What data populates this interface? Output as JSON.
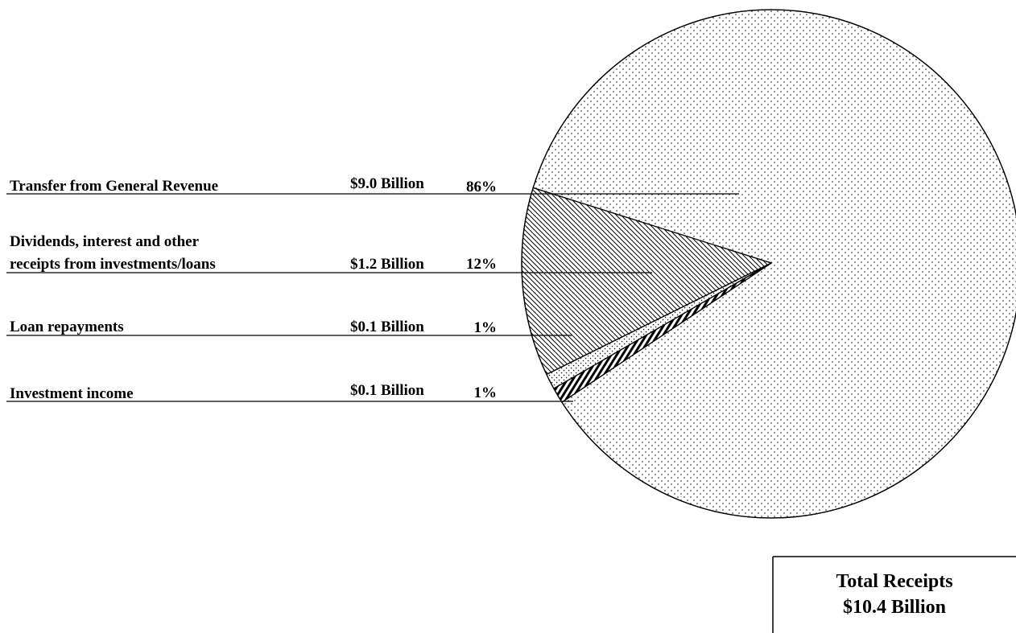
{
  "chart_data": {
    "type": "pie",
    "slices": [
      {
        "label": "Transfer from General Revenue",
        "amount": "$9.0 Billion",
        "percent_label": "86%",
        "value": 86,
        "pattern": "dots"
      },
      {
        "label": "Dividends, interest and other receipts from investments/loans",
        "label_lines": [
          "Dividends, interest and other",
          "receipts from investments/loans"
        ],
        "amount": "$1.2 Billion",
        "percent_label": "12%",
        "value": 12,
        "pattern": "diagonal-hatch"
      },
      {
        "label": "Loan repayments",
        "amount": "$0.1 Billion",
        "percent_label": "1%",
        "value": 1,
        "pattern": "sparse-dots"
      },
      {
        "label": "Investment income",
        "amount": "$0.1 Billion",
        "percent_label": "1%",
        "value": 1,
        "pattern": "vertical-stripes"
      }
    ],
    "total": {
      "title": "Total Receipts",
      "amount": "$10.4 Billion",
      "value": 10.4
    }
  }
}
